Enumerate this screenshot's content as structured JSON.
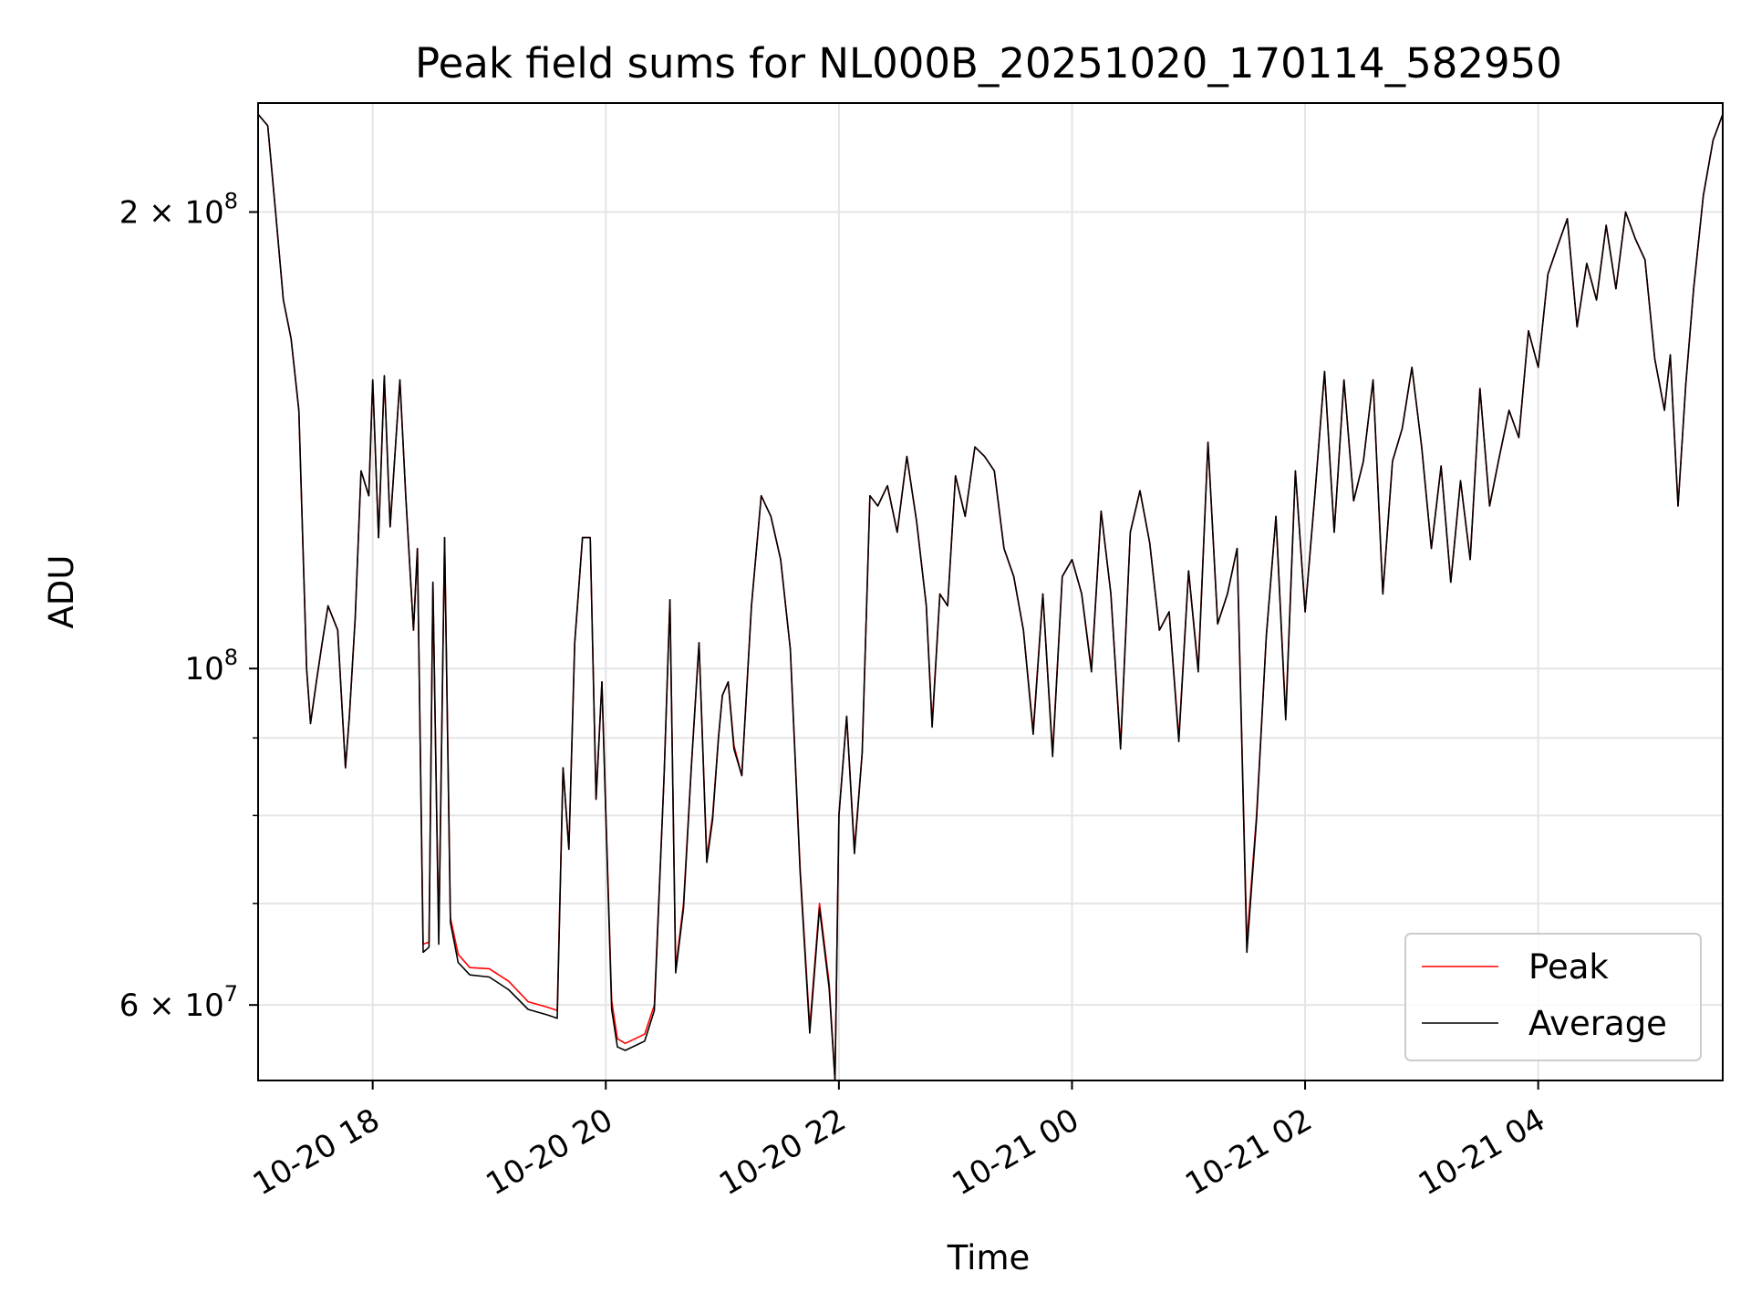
{
  "chart_data": {
    "type": "line",
    "title": "Peak field sums for NL000B_20251020_170114_582950",
    "xlabel": "Time",
    "ylabel": "ADU",
    "y_scale": "log",
    "ylim": [
      53500000,
      236000000
    ],
    "xlim": [
      "2025-10-20 17:01",
      "2025-10-21 05:35"
    ],
    "grid": true,
    "legend_position": "lower-right",
    "x_ticks": [
      {
        "value": "2025-10-20 18:00",
        "label": "10-20 18"
      },
      {
        "value": "2025-10-20 20:00",
        "label": "10-20 20"
      },
      {
        "value": "2025-10-20 22:00",
        "label": "10-20 22"
      },
      {
        "value": "2025-10-21 00:00",
        "label": "10-21 00"
      },
      {
        "value": "2025-10-21 02:00",
        "label": "10-21 02"
      },
      {
        "value": "2025-10-21 04:00",
        "label": "10-21 04"
      }
    ],
    "y_ticks_major": [
      {
        "value": 200000000,
        "label_mantissa": "2 × 10",
        "label_exp": "8"
      },
      {
        "value": 100000000,
        "label_mantissa": "10",
        "label_exp": "8"
      },
      {
        "value": 60000000,
        "label_mantissa": "6 × 10",
        "label_exp": "7"
      }
    ],
    "y_ticks_minor": [
      70000000,
      80000000,
      90000000
    ],
    "x": [
      "2025-10-20 17:01",
      "2025-10-20 17:06",
      "2025-10-20 17:10",
      "2025-10-20 17:14",
      "2025-10-20 17:18",
      "2025-10-20 17:22",
      "2025-10-20 17:26",
      "2025-10-20 17:28",
      "2025-10-20 17:31",
      "2025-10-20 17:34",
      "2025-10-20 17:37",
      "2025-10-20 17:42",
      "2025-10-20 17:46",
      "2025-10-20 17:48",
      "2025-10-20 17:51",
      "2025-10-20 17:54",
      "2025-10-20 17:58",
      "2025-10-20 18:00",
      "2025-10-20 18:03",
      "2025-10-20 18:06",
      "2025-10-20 18:09",
      "2025-10-20 18:14",
      "2025-10-20 18:17",
      "2025-10-20 18:21",
      "2025-10-20 18:23",
      "2025-10-20 18:26",
      "2025-10-20 18:29",
      "2025-10-20 18:31",
      "2025-10-20 18:34",
      "2025-10-20 18:37",
      "2025-10-20 18:40",
      "2025-10-20 18:44",
      "2025-10-20 18:50",
      "2025-10-20 19:00",
      "2025-10-20 19:10",
      "2025-10-20 19:20",
      "2025-10-20 19:30",
      "2025-10-20 19:35",
      "2025-10-20 19:38",
      "2025-10-20 19:41",
      "2025-10-20 19:44",
      "2025-10-20 19:48",
      "2025-10-20 19:52",
      "2025-10-20 19:55",
      "2025-10-20 19:58",
      "2025-10-20 20:00",
      "2025-10-20 20:03",
      "2025-10-20 20:06",
      "2025-10-20 20:10",
      "2025-10-20 20:20",
      "2025-10-20 20:25",
      "2025-10-20 20:30",
      "2025-10-20 20:33",
      "2025-10-20 20:36",
      "2025-10-20 20:40",
      "2025-10-20 20:44",
      "2025-10-20 20:48",
      "2025-10-20 20:52",
      "2025-10-20 20:55",
      "2025-10-20 20:58",
      "2025-10-20 21:00",
      "2025-10-20 21:03",
      "2025-10-20 21:06",
      "2025-10-20 21:10",
      "2025-10-20 21:15",
      "2025-10-20 21:20",
      "2025-10-20 21:25",
      "2025-10-20 21:30",
      "2025-10-20 21:35",
      "2025-10-20 21:40",
      "2025-10-20 21:45",
      "2025-10-20 21:50",
      "2025-10-20 21:55",
      "2025-10-20 21:58",
      "2025-10-20 22:00",
      "2025-10-20 22:04",
      "2025-10-20 22:08",
      "2025-10-20 22:12",
      "2025-10-20 22:16",
      "2025-10-20 22:20",
      "2025-10-20 22:25",
      "2025-10-20 22:30",
      "2025-10-20 22:35",
      "2025-10-20 22:40",
      "2025-10-20 22:45",
      "2025-10-20 22:48",
      "2025-10-20 22:52",
      "2025-10-20 22:56",
      "2025-10-20 23:00",
      "2025-10-20 23:05",
      "2025-10-20 23:10",
      "2025-10-20 23:15",
      "2025-10-20 23:20",
      "2025-10-20 23:25",
      "2025-10-20 23:30",
      "2025-10-20 23:35",
      "2025-10-20 23:40",
      "2025-10-20 23:45",
      "2025-10-20 23:50",
      "2025-10-20 23:55",
      "2025-10-21 00:00",
      "2025-10-21 00:05",
      "2025-10-21 00:10",
      "2025-10-21 00:15",
      "2025-10-21 00:20",
      "2025-10-21 00:25",
      "2025-10-21 00:30",
      "2025-10-21 00:35",
      "2025-10-21 00:40",
      "2025-10-21 00:45",
      "2025-10-21 00:50",
      "2025-10-21 00:55",
      "2025-10-21 01:00",
      "2025-10-21 01:05",
      "2025-10-21 01:10",
      "2025-10-21 01:15",
      "2025-10-21 01:20",
      "2025-10-21 01:25",
      "2025-10-21 01:30",
      "2025-10-21 01:35",
      "2025-10-21 01:40",
      "2025-10-21 01:45",
      "2025-10-21 01:50",
      "2025-10-21 01:55",
      "2025-10-21 02:00",
      "2025-10-21 02:05",
      "2025-10-21 02:10",
      "2025-10-21 02:15",
      "2025-10-21 02:20",
      "2025-10-21 02:25",
      "2025-10-21 02:30",
      "2025-10-21 02:35",
      "2025-10-21 02:40",
      "2025-10-21 02:45",
      "2025-10-21 02:50",
      "2025-10-21 02:55",
      "2025-10-21 03:00",
      "2025-10-21 03:05",
      "2025-10-21 03:10",
      "2025-10-21 03:15",
      "2025-10-21 03:20",
      "2025-10-21 03:25",
      "2025-10-21 03:30",
      "2025-10-21 03:35",
      "2025-10-21 03:40",
      "2025-10-21 03:45",
      "2025-10-21 03:50",
      "2025-10-21 03:55",
      "2025-10-21 04:00",
      "2025-10-21 04:05",
      "2025-10-21 04:10",
      "2025-10-21 04:15",
      "2025-10-21 04:20",
      "2025-10-21 04:25",
      "2025-10-21 04:30",
      "2025-10-21 04:35",
      "2025-10-21 04:40",
      "2025-10-21 04:45",
      "2025-10-21 04:50",
      "2025-10-21 04:55",
      "2025-10-21 05:00",
      "2025-10-21 05:05",
      "2025-10-21 05:08",
      "2025-10-21 05:12",
      "2025-10-21 05:16",
      "2025-10-21 05:20",
      "2025-10-21 05:25",
      "2025-10-21 05:30",
      "2025-10-21 05:35"
    ],
    "series": [
      {
        "name": "Peak",
        "color": "#ff0000",
        "values": [
          232000000,
          228000000,
          200000000,
          175000000,
          165000000,
          148000000,
          100000000,
          92000000,
          98000000,
          104000000,
          110000000,
          106000000,
          86000000,
          93000000,
          108000000,
          135000000,
          130000000,
          155000000,
          122000000,
          156000000,
          124000000,
          155000000,
          130000000,
          106000000,
          120000000,
          65800000,
          66000000,
          114000000,
          66500000,
          122000000,
          68500000,
          64800000,
          63500000,
          63400000,
          62200000,
          60300000,
          59800000,
          59500000,
          86000000,
          76000000,
          104000000,
          122000000,
          122000000,
          82000000,
          98000000,
          80500000,
          60400000,
          57000000,
          56600000,
          57400000,
          60000000,
          85000000,
          111000000,
          63400000,
          70000000,
          86000000,
          104000000,
          75000000,
          80000000,
          90000000,
          96000000,
          98000000,
          89000000,
          85000000,
          110000000,
          130000000,
          126000000,
          118000000,
          103000000,
          74000000,
          58000000,
          70000000,
          62000000,
          53000000,
          80000000,
          93000000,
          76000000,
          88000000,
          130000000,
          128000000,
          132000000,
          123000000,
          138000000,
          125000000,
          110000000,
          92000000,
          112000000,
          110000000,
          134000000,
          126000000,
          140000000,
          138000000,
          135000000,
          120000000,
          115000000,
          106000000,
          91000000,
          112000000,
          88000000,
          115000000,
          118000000,
          112000000,
          100000000,
          127000000,
          112000000,
          89000000,
          123000000,
          131000000,
          121000000,
          106000000,
          109000000,
          90000000,
          116000000,
          100000000,
          141000000,
          107000000,
          112000000,
          120000000,
          66000000,
          80000000,
          105000000,
          126000000,
          93000000,
          135000000,
          109000000,
          130000000,
          157000000,
          123000000,
          155000000,
          129000000,
          137000000,
          155000000,
          112000000,
          137000000,
          144000000,
          158000000,
          140000000,
          120000000,
          136000000,
          114000000,
          133000000,
          118000000,
          153000000,
          128000000,
          138000000,
          148000000,
          142000000,
          167000000,
          158000000,
          182000000,
          190000000,
          198000000,
          168000000,
          185000000,
          175000000,
          196000000,
          178000000,
          200000000,
          192000000,
          186000000,
          160000000,
          148000000,
          161000000,
          128000000,
          154000000,
          178000000,
          205000000,
          223000000,
          232000000
        ]
      },
      {
        "name": "Average",
        "color": "#000000",
        "values": [
          232000000,
          228000000,
          200000000,
          175000000,
          165000000,
          148000000,
          100000000,
          92000000,
          98000000,
          104000000,
          110000000,
          106000000,
          86000000,
          93000000,
          108000000,
          135000000,
          130000000,
          155000000,
          122000000,
          156000000,
          124000000,
          155000000,
          130000000,
          106000000,
          120000000,
          65000000,
          65500000,
          114000000,
          65800000,
          122000000,
          68000000,
          64000000,
          62800000,
          62600000,
          61400000,
          59600000,
          59100000,
          58800000,
          86000000,
          76000000,
          104000000,
          122000000,
          122000000,
          82000000,
          98000000,
          80000000,
          59600000,
          56300000,
          56000000,
          56800000,
          59500000,
          85000000,
          111000000,
          63000000,
          69500000,
          86000000,
          104000000,
          74500000,
          79500000,
          90000000,
          96000000,
          98000000,
          88500000,
          85000000,
          110000000,
          130000000,
          126000000,
          118000000,
          103000000,
          73500000,
          57500000,
          69500000,
          61500000,
          52500000,
          80000000,
          93000000,
          75500000,
          88000000,
          130000000,
          128000000,
          132000000,
          123000000,
          138000000,
          125000000,
          110000000,
          91500000,
          112000000,
          110000000,
          134000000,
          126000000,
          140000000,
          138000000,
          135000000,
          120000000,
          115000000,
          106000000,
          90500000,
          112000000,
          87500000,
          115000000,
          118000000,
          112000000,
          99500000,
          127000000,
          112000000,
          88500000,
          123000000,
          131000000,
          121000000,
          106000000,
          109000000,
          89500000,
          116000000,
          99500000,
          141000000,
          107000000,
          112000000,
          120000000,
          65000000,
          79500000,
          105000000,
          126000000,
          92500000,
          135000000,
          109000000,
          130000000,
          157000000,
          123000000,
          155000000,
          129000000,
          137000000,
          155000000,
          112000000,
          137000000,
          144000000,
          158000000,
          140000000,
          120000000,
          136000000,
          114000000,
          133000000,
          118000000,
          153000000,
          128000000,
          138000000,
          148000000,
          142000000,
          167000000,
          158000000,
          182000000,
          190000000,
          198000000,
          168000000,
          185000000,
          175000000,
          196000000,
          178000000,
          200000000,
          192000000,
          186000000,
          160000000,
          148000000,
          161000000,
          128000000,
          154000000,
          178000000,
          205000000,
          223000000,
          232000000
        ]
      }
    ]
  }
}
